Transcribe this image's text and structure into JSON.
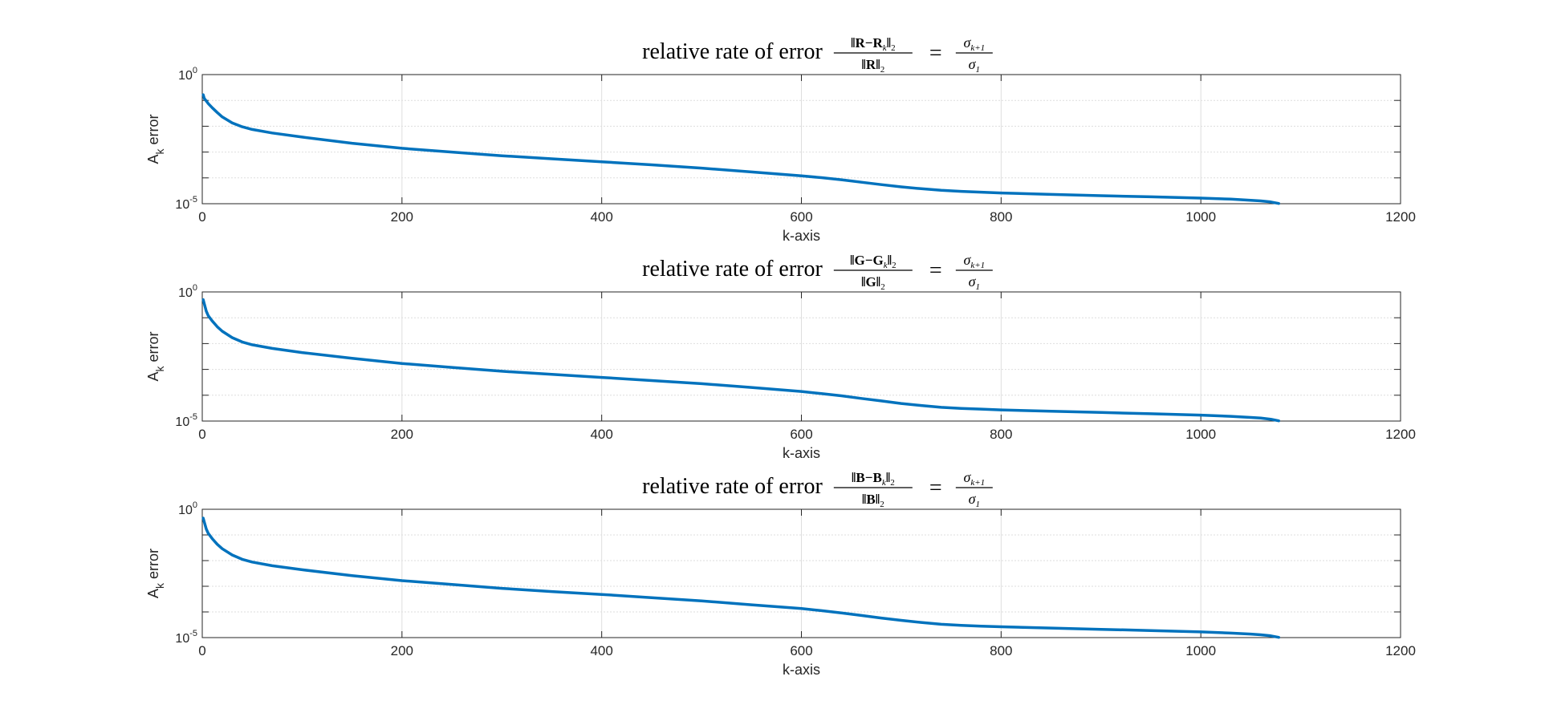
{
  "chart_data": [
    {
      "type": "line",
      "title": {
        "prefix": "relative rate of error",
        "frac_num": "‖R−R",
        "frac_num_sub": "k",
        "frac_num_tail": "‖",
        "frac_num_norm_sub": "2",
        "frac_den": "‖R‖",
        "frac_den_sub": "2",
        "equals": "=",
        "rhs_num": "σ",
        "rhs_num_sub": "k+1",
        "rhs_den": "σ",
        "rhs_den_sub": "1"
      },
      "xlabel": "k-axis",
      "ylabel": "A",
      "ylabel_sub": "k",
      "ylabel_rest": "error",
      "xlim": [
        0,
        1200
      ],
      "ylim": [
        1e-05,
        1
      ],
      "yscale": "log",
      "grid": true,
      "xticks": [
        "0",
        "200",
        "400",
        "600",
        "800",
        "1000",
        "1200"
      ],
      "yticks": [
        {
          "base": "10",
          "exp": "0"
        },
        {
          "base": "10",
          "exp": "-5"
        }
      ],
      "series": [
        {
          "color": "#0072BD",
          "x": [
            1,
            2,
            4,
            6,
            10,
            15,
            20,
            30,
            40,
            50,
            70,
            100,
            150,
            200,
            250,
            300,
            350,
            400,
            450,
            500,
            550,
            600,
            620,
            640,
            660,
            680,
            700,
            720,
            740,
            760,
            780,
            800,
            850,
            900,
            950,
            1000,
            1030,
            1050,
            1060,
            1070,
            1078
          ],
          "y": [
            0.165,
            0.12,
            0.095,
            0.075,
            0.052,
            0.034,
            0.023,
            0.0135,
            0.0095,
            0.0075,
            0.0055,
            0.0038,
            0.0022,
            0.0014,
            0.001,
            0.00072,
            0.00055,
            0.00042,
            0.00032,
            0.00024,
            0.00017,
            0.00012,
            0.000102,
            8.5e-05,
            6.8e-05,
            5.5e-05,
            4.5e-05,
            3.8e-05,
            3.3e-05,
            3e-05,
            2.8e-05,
            2.6e-05,
            2.3e-05,
            2.05e-05,
            1.85e-05,
            1.65e-05,
            1.5e-05,
            1.36e-05,
            1.28e-05,
            1.17e-05,
            1.02e-05
          ]
        }
      ]
    },
    {
      "type": "line",
      "title": {
        "prefix": "relative rate of error",
        "frac_num": "‖G−G",
        "frac_num_sub": "k",
        "frac_num_tail": "‖",
        "frac_num_norm_sub": "2",
        "frac_den": "‖G‖",
        "frac_den_sub": "2",
        "equals": "=",
        "rhs_num": "σ",
        "rhs_num_sub": "k+1",
        "rhs_den": "σ",
        "rhs_den_sub": "1"
      },
      "xlabel": "k-axis",
      "ylabel": "A",
      "ylabel_sub": "k",
      "ylabel_rest": "error",
      "xlim": [
        0,
        1200
      ],
      "ylim": [
        1e-05,
        1
      ],
      "yscale": "log",
      "grid": true,
      "xticks": [
        "0",
        "200",
        "400",
        "600",
        "800",
        "1000",
        "1200"
      ],
      "yticks": [
        {
          "base": "10",
          "exp": "0"
        },
        {
          "base": "10",
          "exp": "-5"
        }
      ],
      "series": [
        {
          "color": "#0072BD",
          "x": [
            1,
            2,
            4,
            6,
            10,
            15,
            20,
            30,
            40,
            50,
            70,
            100,
            150,
            200,
            250,
            300,
            350,
            400,
            450,
            500,
            550,
            600,
            620,
            640,
            660,
            680,
            700,
            720,
            740,
            760,
            780,
            800,
            850,
            900,
            950,
            1000,
            1030,
            1050,
            1060,
            1070,
            1078
          ],
          "y": [
            0.5,
            0.35,
            0.18,
            0.12,
            0.075,
            0.045,
            0.03,
            0.017,
            0.0115,
            0.009,
            0.0065,
            0.0045,
            0.0027,
            0.0017,
            0.0012,
            0.00085,
            0.00064,
            0.00049,
            0.00037,
            0.00028,
            0.0002,
            0.00014,
            0.000115,
            9.5e-05,
            7.5e-05,
            6e-05,
            4.8e-05,
            4e-05,
            3.4e-05,
            3.1e-05,
            2.9e-05,
            2.7e-05,
            2.4e-05,
            2.15e-05,
            1.92e-05,
            1.7e-05,
            1.52e-05,
            1.38e-05,
            1.3e-05,
            1.18e-05,
            1.02e-05
          ]
        }
      ]
    },
    {
      "type": "line",
      "title": {
        "prefix": "relative rate of error",
        "frac_num": "‖B−B",
        "frac_num_sub": "k",
        "frac_num_tail": "‖",
        "frac_num_norm_sub": "2",
        "frac_den": "‖B‖",
        "frac_den_sub": "2",
        "equals": "=",
        "rhs_num": "σ",
        "rhs_num_sub": "k+1",
        "rhs_den": "σ",
        "rhs_den_sub": "1"
      },
      "xlabel": "k-axis",
      "ylabel": "A",
      "ylabel_sub": "k",
      "ylabel_rest": "error",
      "xlim": [
        0,
        1200
      ],
      "ylim": [
        1e-05,
        1
      ],
      "yscale": "log",
      "grid": true,
      "xticks": [
        "0",
        "200",
        "400",
        "600",
        "800",
        "1000",
        "1200"
      ],
      "yticks": [
        {
          "base": "10",
          "exp": "0"
        },
        {
          "base": "10",
          "exp": "-5"
        }
      ],
      "series": [
        {
          "color": "#0072BD",
          "x": [
            1,
            2,
            4,
            6,
            10,
            15,
            20,
            30,
            40,
            50,
            70,
            100,
            150,
            200,
            250,
            300,
            350,
            400,
            450,
            500,
            550,
            600,
            620,
            640,
            660,
            680,
            700,
            720,
            740,
            760,
            780,
            800,
            850,
            900,
            950,
            1000,
            1030,
            1050,
            1060,
            1070,
            1078
          ],
          "y": [
            0.45,
            0.32,
            0.17,
            0.115,
            0.072,
            0.043,
            0.029,
            0.0165,
            0.0112,
            0.0088,
            0.0063,
            0.0044,
            0.0026,
            0.00165,
            0.00118,
            0.00083,
            0.00062,
            0.00048,
            0.00036,
            0.00027,
            0.00019,
            0.000135,
            0.000112,
            9.2e-05,
            7.3e-05,
            5.8e-05,
            4.7e-05,
            3.9e-05,
            3.3e-05,
            3e-05,
            2.8e-05,
            2.65e-05,
            2.35e-05,
            2.1e-05,
            1.88e-05,
            1.67e-05,
            1.5e-05,
            1.37e-05,
            1.29e-05,
            1.17e-05,
            1.02e-05
          ]
        }
      ]
    }
  ]
}
